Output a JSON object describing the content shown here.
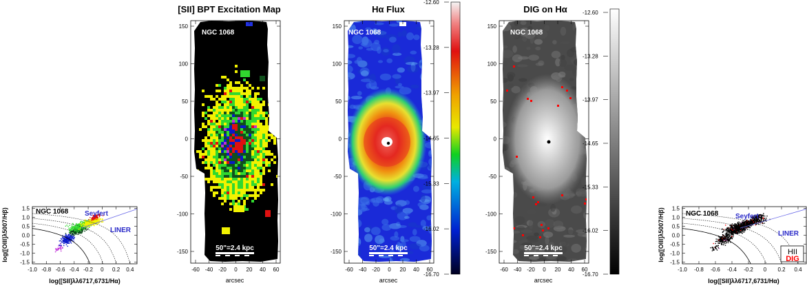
{
  "galaxy": "NGC 1068",
  "scale_bar": "50\"=2.4 kpc",
  "colors": {
    "hii": "#0a18c8",
    "composite": "#0f4f1c",
    "low_seyfert": "#31d92f",
    "seyfert": "#f2f200",
    "strong_seyfert": "#e01010",
    "liner": "#c030d8",
    "map_background": "#000000",
    "dig_marker": "#ff0000",
    "seyfert_text": "#2a2ac8",
    "liner_line": "#6a6ae8"
  },
  "bpt_left": {
    "galaxy": "NGC 1068",
    "seyfert_label": "Seyfert",
    "liner_label": "LINER",
    "xlabel": "log([SII]λλ6717,6731/Hα)",
    "ylabel": "log([OIII]λ5007/Hβ)",
    "xticks": [
      "-1.0",
      "-0.8",
      "-0.6",
      "-0.4",
      "-0.2",
      "0",
      "0.2",
      "0.4"
    ],
    "yticks": [
      "1.5",
      "1.0",
      "0.5",
      "0.0",
      "-0.5",
      "-1.0",
      "-1.5"
    ]
  },
  "bpt_map": {
    "title": "[SII] BPT Excitation Map",
    "galaxy": "NGC 1068",
    "scale": "50\"=2.4 kpc",
    "xlabel": "arcsec",
    "xticks": [
      "-60",
      "-40",
      "-20",
      "0",
      "20",
      "40",
      "60"
    ],
    "yticks": [
      "150",
      "100",
      "50",
      "0",
      "-50",
      "-100",
      "-150"
    ]
  },
  "ha_map": {
    "title": "Hα Flux",
    "galaxy": "NGC 1068",
    "scale": "50\"=2.4 kpc",
    "xlabel": "arcsec",
    "xticks": [
      "-60",
      "-40",
      "-20",
      "0",
      "20",
      "40",
      "60"
    ],
    "yticks": [
      "150",
      "100",
      "50",
      "0",
      "-50",
      "-100",
      "-150"
    ],
    "colorbar_ticks": [
      "-12.60",
      "-13.28",
      "-13.97",
      "-14.65",
      "-15.33",
      "-16.02",
      "-16.70"
    ]
  },
  "dig_map": {
    "title": "DIG on Hα",
    "galaxy": "NGC 1068",
    "scale": "50\"=2.4 kpc",
    "xlabel": "arcsec",
    "xticks": [
      "-60",
      "-40",
      "-20",
      "0",
      "20",
      "40",
      "60"
    ],
    "yticks": [
      "150",
      "100",
      "50",
      "0",
      "-50",
      "-100",
      "-150"
    ],
    "colorbar_ticks": [
      "-12.60",
      "-13.28",
      "-13.97",
      "-14.65",
      "-15.33",
      "-16.02",
      "-16.70"
    ]
  },
  "bpt_right": {
    "galaxy": "NGC 1068",
    "seyfert_label": "Seyfert",
    "liner_label": "LINER",
    "legend_hii": "HII",
    "legend_dig": "DIG",
    "xlabel": "log([SII]λλ6717,6731/Hα)",
    "ylabel": "log([OIII]λ5007/Hβ)",
    "xticks": [
      "-1.0",
      "-0.8",
      "-0.6",
      "-0.4",
      "-0.2",
      "0",
      "0.2",
      "0.4"
    ],
    "yticks": [
      "1.5",
      "1.0",
      "0.5",
      "0.0",
      "-0.5",
      "-1.0",
      "-1.5"
    ]
  }
}
